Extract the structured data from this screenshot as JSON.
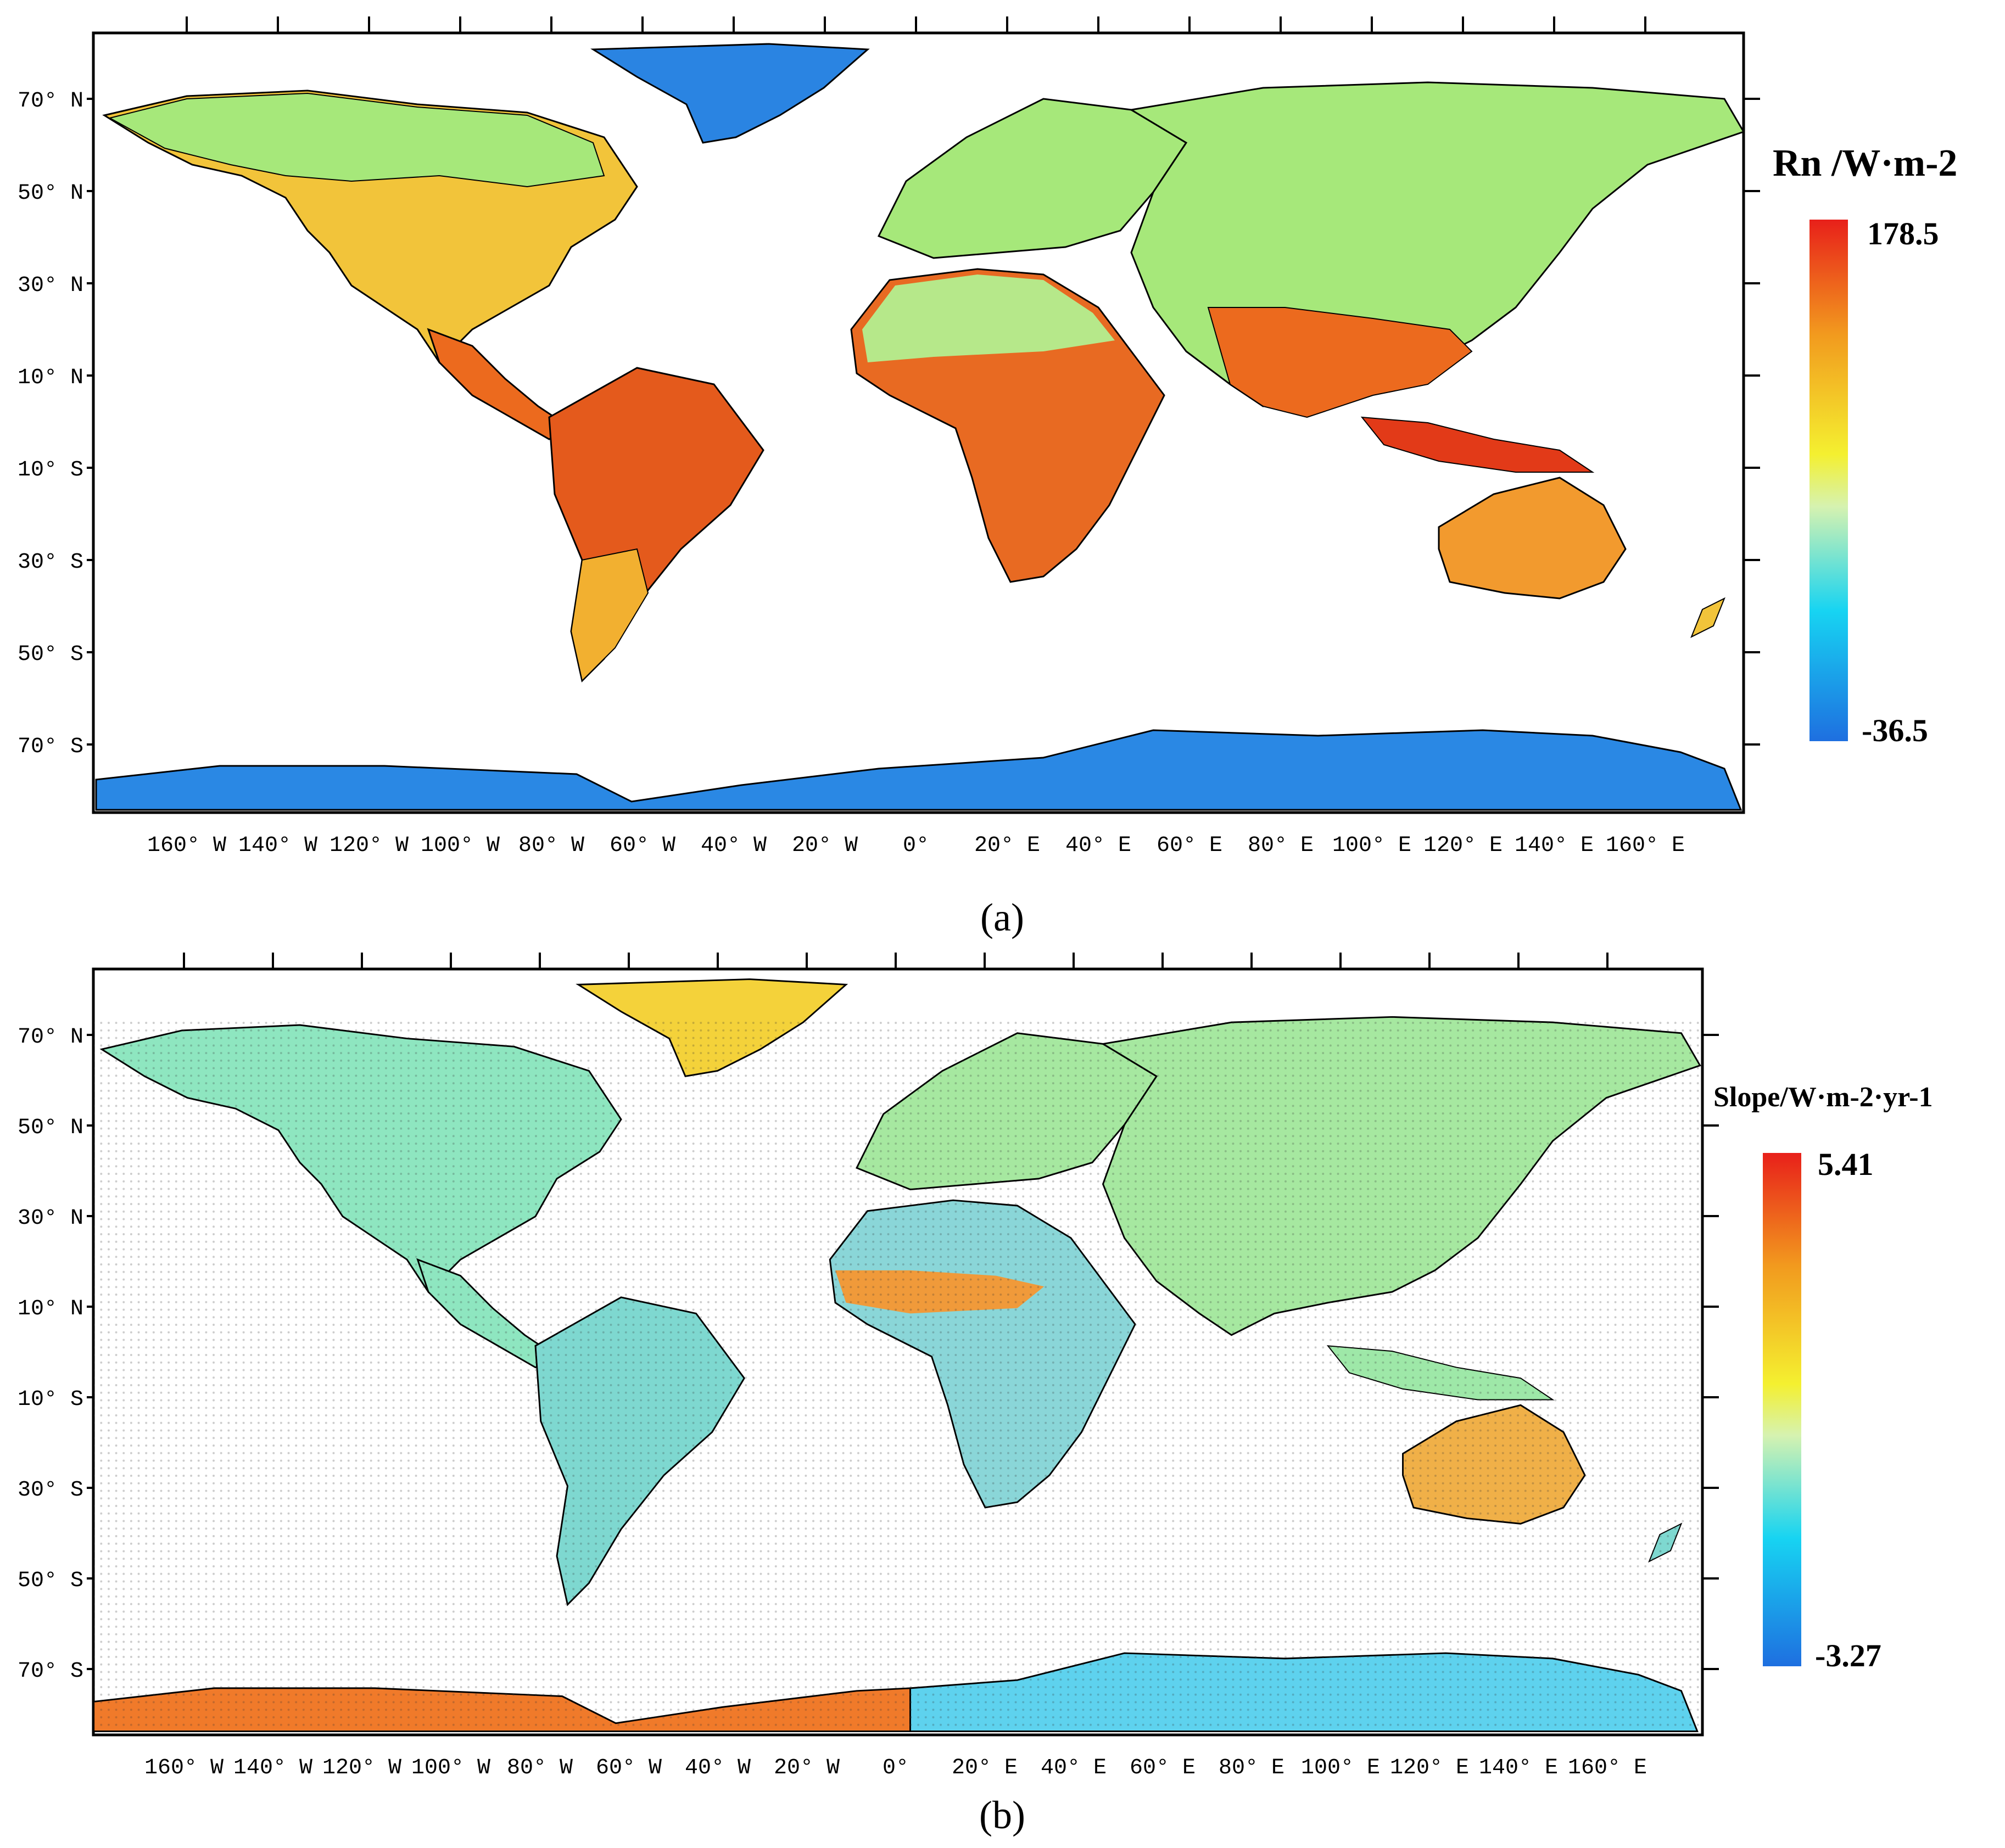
{
  "panels": [
    {
      "id": "a",
      "label": "(a)",
      "legend": {
        "title": "Rn /W·m-2",
        "max": "178.5",
        "min": "-36.5"
      },
      "colors": [
        "#1e6fe0",
        "#17b6f0",
        "#9ee89a",
        "#f4ec30",
        "#f29a1e",
        "#e8201a"
      ]
    },
    {
      "id": "b",
      "label": "(b)",
      "legend": {
        "title": "Slope/W·m-2·yr-1",
        "max": "5.41",
        "min": "-3.27"
      },
      "colors": [
        "#1e6fe0",
        "#17b6f0",
        "#9ee89a",
        "#f4ec30",
        "#f29a1e",
        "#e8201a"
      ]
    }
  ],
  "axes": {
    "lon_ticks": [
      "160° W",
      "140° W",
      "120° W",
      "100° W",
      "80° W",
      "60° W",
      "40° W",
      "20° W",
      "0°",
      "20° E",
      "40° E",
      "60° E",
      "80° E",
      "100° E",
      "120° E",
      "140° E",
      "160° E"
    ],
    "lat_ticks": [
      "70° N",
      "50° N",
      "30° N",
      "10° N",
      "10° S",
      "30° S",
      "50° S",
      "70° S"
    ]
  },
  "map_features": {
    "continents": [
      "North America",
      "Greenland",
      "South America",
      "Europe",
      "Africa",
      "Asia",
      "Australia",
      "Antarctica"
    ]
  }
}
